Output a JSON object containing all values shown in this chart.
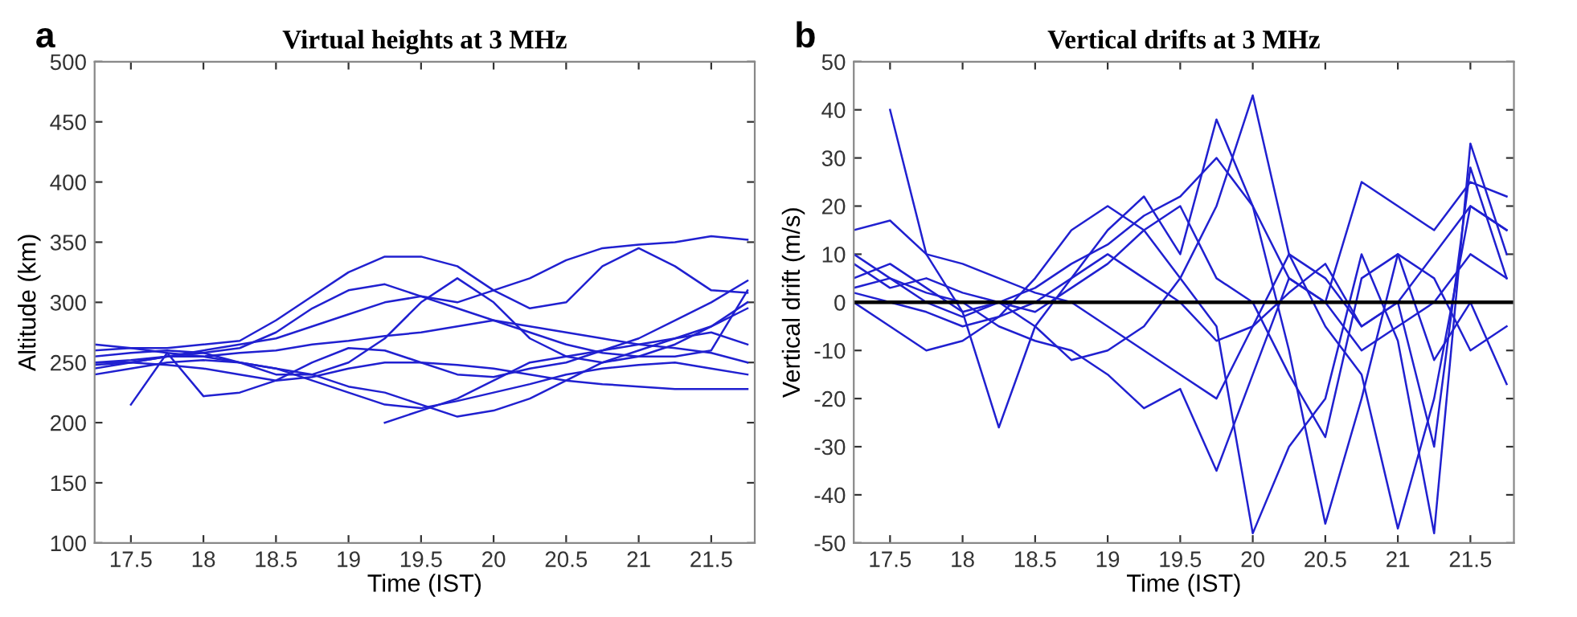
{
  "chart_data": [
    {
      "type": "line",
      "title": "Virtual heights at 3 MHz",
      "xlabel": "Time (IST)",
      "ylabel": "Altitude (km)",
      "annotations": [
        "a"
      ],
      "grid": false,
      "legend": false,
      "marker": "none",
      "line_style": "solid",
      "x": [
        17.25,
        17.5,
        17.75,
        18,
        18.25,
        18.5,
        18.75,
        19,
        19.25,
        19.5,
        19.75,
        20,
        20.25,
        20.5,
        20.75,
        21,
        21.25,
        21.5,
        21.75
      ],
      "xlim": [
        17.25,
        21.8
      ],
      "xticks": [
        17.5,
        18,
        18.5,
        19,
        19.5,
        20,
        20.5,
        21,
        21.5
      ],
      "ylim": [
        100,
        500
      ],
      "yticks": [
        100,
        150,
        200,
        250,
        300,
        350,
        400,
        450,
        500
      ],
      "series": [
        {
          "color": "#2020d0",
          "values": [
            250,
            252,
            255,
            258,
            262,
            275,
            295,
            310,
            315,
            305,
            300,
            310,
            320,
            335,
            345,
            348,
            350,
            355,
            352
          ]
        },
        {
          "color": "#2020d0",
          "values": [
            245,
            250,
            255,
            255,
            250,
            245,
            235,
            225,
            215,
            212,
            218,
            225,
            232,
            240,
            245,
            248,
            250,
            245,
            240
          ]
        },
        {
          "color": "#2020d0",
          "values": [
            260,
            262,
            262,
            265,
            268,
            285,
            305,
            325,
            338,
            338,
            330,
            310,
            295,
            300,
            330,
            345,
            330,
            310,
            308
          ]
        },
        {
          "color": "#2020d0",
          "values": [
            255,
            258,
            260,
            258,
            250,
            240,
            240,
            250,
            270,
            300,
            320,
            300,
            270,
            255,
            250,
            255,
            265,
            280,
            300
          ]
        },
        {
          "color": "#2020d0",
          "values": [
            240,
            245,
            250,
            252,
            250,
            245,
            240,
            230,
            225,
            215,
            205,
            210,
            220,
            235,
            250,
            260,
            270,
            275,
            265
          ]
        },
        {
          "color": "#2020d0",
          "values": [
            265,
            262,
            258,
            255,
            258,
            260,
            265,
            268,
            272,
            275,
            280,
            285,
            280,
            275,
            270,
            265,
            262,
            258,
            250
          ]
        },
        {
          "color": "#2020d0",
          "values": [
            null,
            null,
            null,
            null,
            null,
            null,
            null,
            null,
            200,
            210,
            220,
            235,
            250,
            255,
            260,
            265,
            270,
            280,
            295
          ]
        },
        {
          "color": "#2020d0",
          "values": [
            250,
            250,
            248,
            245,
            240,
            235,
            238,
            245,
            250,
            250,
            248,
            245,
            240,
            235,
            232,
            230,
            228,
            228,
            228
          ]
        },
        {
          "color": "#2020d0",
          "values": [
            null,
            215,
            258,
            222,
            225,
            235,
            250,
            262,
            260,
            250,
            240,
            238,
            245,
            250,
            260,
            270,
            285,
            300,
            318
          ]
        },
        {
          "color": "#2020d0",
          "values": [
            248,
            250,
            255,
            260,
            265,
            270,
            280,
            290,
            300,
            305,
            295,
            285,
            275,
            265,
            258,
            255,
            255,
            260,
            310
          ]
        }
      ]
    },
    {
      "type": "line",
      "title": "Vertical drifts at 3 MHz",
      "xlabel": "Time (IST)",
      "ylabel": "Vertical drift (m/s)",
      "annotations": [
        "b"
      ],
      "grid": false,
      "legend": false,
      "marker": "none",
      "line_style": "solid",
      "x": [
        17.25,
        17.5,
        17.75,
        18,
        18.25,
        18.5,
        18.75,
        19,
        19.25,
        19.5,
        19.75,
        20,
        20.25,
        20.5,
        20.75,
        21,
        21.25,
        21.5,
        21.75
      ],
      "xlim": [
        17.25,
        21.8
      ],
      "xticks": [
        17.5,
        18,
        18.5,
        19,
        19.5,
        20,
        20.5,
        21,
        21.5
      ],
      "ylim": [
        -50,
        50
      ],
      "yticks": [
        -50,
        -40,
        -30,
        -20,
        -10,
        0,
        10,
        20,
        30,
        40,
        50
      ],
      "ref_lines": [
        {
          "axis": "y",
          "value": 0,
          "color": "#000000"
        }
      ],
      "series": [
        {
          "color": "#2020d0",
          "values": [
            15,
            17,
            10,
            8,
            5,
            2,
            0,
            -5,
            -10,
            -15,
            -20,
            -5,
            10,
            5,
            -5,
            0,
            10,
            20,
            15
          ]
        },
        {
          "color": "#2020d0",
          "values": [
            5,
            8,
            3,
            -2,
            -26,
            -5,
            5,
            15,
            22,
            10,
            38,
            20,
            -10,
            -46,
            -20,
            10,
            5,
            -10,
            -5
          ]
        },
        {
          "color": "#2020d0",
          "values": [
            10,
            5,
            0,
            -3,
            0,
            -5,
            -12,
            -10,
            -5,
            5,
            20,
            43,
            10,
            -5,
            -15,
            -47,
            -20,
            20,
            15
          ]
        },
        {
          "color": "#2020d0",
          "values": [
            null,
            40,
            10,
            -2,
            0,
            3,
            8,
            12,
            18,
            22,
            30,
            20,
            5,
            0,
            -10,
            -5,
            0,
            10,
            5
          ]
        },
        {
          "color": "#2020d0",
          "values": [
            3,
            5,
            2,
            0,
            -5,
            -8,
            -10,
            -15,
            -22,
            -18,
            -35,
            -15,
            5,
            0,
            25,
            20,
            15,
            25,
            22
          ]
        },
        {
          "color": "#2020d0",
          "values": [
            0,
            -5,
            -10,
            -8,
            -3,
            5,
            15,
            20,
            15,
            5,
            -5,
            -48,
            -30,
            -20,
            10,
            -8,
            -48,
            33,
            10
          ]
        },
        {
          "color": "#2020d0",
          "values": [
            8,
            3,
            5,
            2,
            0,
            -2,
            3,
            8,
            15,
            20,
            5,
            0,
            -15,
            -28,
            5,
            10,
            -12,
            0,
            -17
          ]
        },
        {
          "color": "#2020d0",
          "values": [
            2,
            0,
            -2,
            -5,
            -3,
            0,
            5,
            10,
            5,
            0,
            -8,
            -5,
            2,
            8,
            -5,
            0,
            -30,
            28,
            5
          ]
        }
      ]
    }
  ]
}
